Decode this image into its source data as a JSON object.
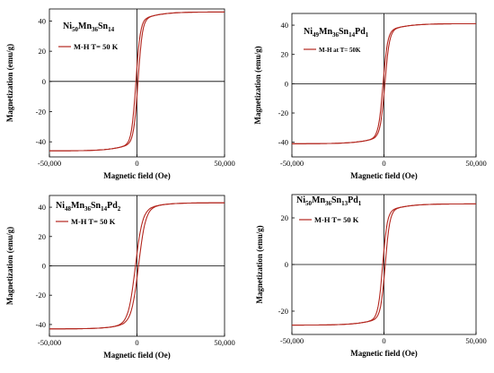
{
  "chart_data": [
    {
      "type": "line",
      "panel": "top-left",
      "title_parts": [
        "Ni",
        "50",
        "Mn",
        "36",
        "Sn",
        "14"
      ],
      "legend": "M-H  T= 50 K",
      "xlabel": "Magnetic field (Oe)",
      "ylabel": "Magnetization (emu/g)",
      "xlim": [
        -50000,
        50000
      ],
      "ylim": [
        -50,
        48
      ],
      "xticks": [
        -50000,
        0,
        50000
      ],
      "xtick_labels": [
        "-50,000",
        "0",
        "50,000"
      ],
      "yticks": [
        -40,
        -20,
        0,
        20,
        40
      ],
      "ms": 46,
      "hc": 600,
      "k": 2500,
      "series": [
        {
          "values_x": [
            -50000,
            -10000,
            -2000,
            0,
            2000,
            10000,
            50000
          ],
          "values_y": [
            -46,
            -41,
            -30,
            0,
            30,
            41,
            46
          ]
        }
      ]
    },
    {
      "type": "line",
      "panel": "top-right",
      "title_parts": [
        "Ni",
        "49",
        "Mn",
        "36",
        "Sn",
        "14",
        "Pd",
        "1"
      ],
      "legend": "M-H at T= 50K",
      "xlabel": "Magnetic field (Oe)",
      "ylabel": "Magnetization (emu/g)",
      "xlim": [
        -50000,
        50000
      ],
      "ylim": [
        -50,
        48
      ],
      "xticks": [
        -50000,
        0,
        50000
      ],
      "xtick_labels": [
        "-50,000",
        "0",
        "50,000"
      ],
      "yticks": [
        -40,
        -20,
        0,
        20,
        40
      ],
      "ms": 41,
      "hc": 500,
      "k": 2500,
      "series": [
        {
          "values_x": [
            -50000,
            -10000,
            -2000,
            0,
            2000,
            10000,
            50000
          ],
          "values_y": [
            -41,
            -37,
            -27,
            0,
            27,
            37,
            41
          ]
        }
      ]
    },
    {
      "type": "line",
      "panel": "bottom-left",
      "title_parts": [
        "Ni",
        "48",
        "Mn",
        "36",
        "Sn",
        "14",
        "Pd",
        "2"
      ],
      "legend": "M-H  T= 50 K",
      "xlabel": "Magnetic field (Oe)",
      "ylabel": "Magnetization (emu/g)",
      "xlim": [
        -50000,
        50000
      ],
      "ylim": [
        -48,
        48
      ],
      "xticks": [
        -50000,
        0,
        50000
      ],
      "xtick_labels": [
        "-50,000",
        "0",
        "50,000"
      ],
      "yticks": [
        -40,
        -20,
        0,
        20,
        40
      ],
      "ms": 43,
      "hc": 900,
      "k": 4000,
      "series": [
        {
          "values_x": [
            -50000,
            -10000,
            -2000,
            0,
            2000,
            10000,
            50000
          ],
          "values_y": [
            -43,
            -38,
            -22,
            0,
            22,
            38,
            43
          ]
        }
      ]
    },
    {
      "type": "line",
      "panel": "bottom-right",
      "title_parts": [
        "Ni",
        "50",
        "Mn",
        "36",
        "Sn",
        "13",
        "Pd",
        "1"
      ],
      "legend": "M-H  T= 50 K",
      "xlabel": "Magnetic field (Oe)",
      "ylabel": "Magnetization (emu/g)",
      "xlim": [
        -50000,
        50000
      ],
      "ylim": [
        -30,
        30
      ],
      "xticks": [
        -50000,
        0,
        50000
      ],
      "xtick_labels": [
        "-50,000",
        "0",
        "50,000"
      ],
      "yticks": [
        -20,
        0,
        20
      ],
      "ms": 26,
      "hc": 700,
      "k": 2500,
      "series": [
        {
          "values_x": [
            -50000,
            -10000,
            -2000,
            0,
            2000,
            10000,
            50000
          ],
          "values_y": [
            -26,
            -23,
            -16,
            0,
            16,
            23,
            26
          ]
        }
      ]
    }
  ],
  "style": {
    "curve_color": "#b3261e",
    "axis_color": "#000000",
    "legend_line_color": "#b3261e"
  }
}
